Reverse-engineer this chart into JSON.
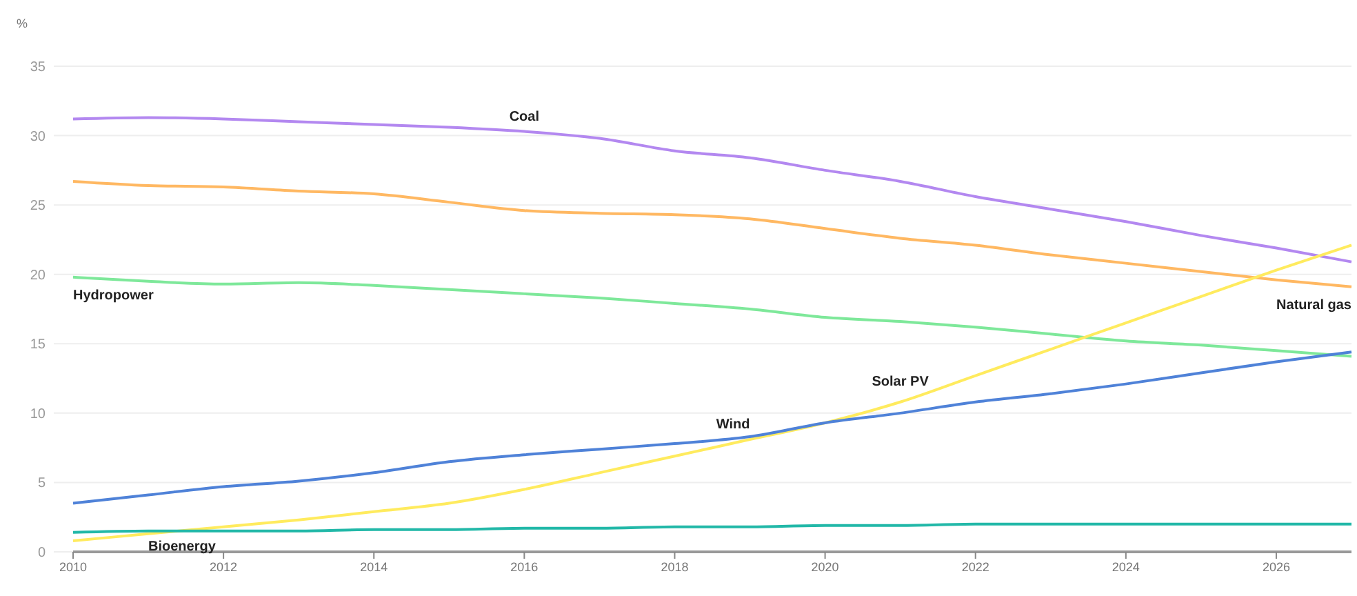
{
  "chart_data": {
    "type": "line",
    "ylabel": "%",
    "x": [
      2010,
      2011,
      2012,
      2013,
      2014,
      2015,
      2016,
      2017,
      2018,
      2019,
      2020,
      2021,
      2022,
      2023,
      2024,
      2025,
      2026,
      2027
    ],
    "xlim": [
      2010,
      2027
    ],
    "xticks": [
      2010,
      2012,
      2014,
      2016,
      2018,
      2020,
      2022,
      2024,
      2026
    ],
    "ylim": [
      0,
      35
    ],
    "yticks": [
      0,
      5,
      10,
      15,
      20,
      25,
      30,
      35
    ],
    "grid": "y",
    "legend": false,
    "marker": "none",
    "line_style": "solid",
    "series": [
      {
        "name": "Coal",
        "color": "#b388f0",
        "values": [
          31.2,
          31.3,
          31.2,
          31.0,
          30.8,
          30.6,
          30.3,
          29.8,
          28.9,
          28.4,
          27.5,
          26.7,
          25.6,
          24.7,
          23.8,
          22.8,
          21.9,
          20.9
        ]
      },
      {
        "name": "Natural gas",
        "color": "#ffb862",
        "values": [
          26.7,
          26.4,
          26.3,
          26.0,
          25.8,
          25.2,
          24.6,
          24.4,
          24.3,
          24.0,
          23.3,
          22.6,
          22.1,
          21.4,
          20.8,
          20.2,
          19.6,
          19.1
        ]
      },
      {
        "name": "Hydropower",
        "color": "#7ee89a",
        "values": [
          19.8,
          19.5,
          19.3,
          19.4,
          19.2,
          18.9,
          18.6,
          18.3,
          17.9,
          17.5,
          16.9,
          16.6,
          16.2,
          15.7,
          15.2,
          14.9,
          14.5,
          14.1
        ]
      },
      {
        "name": "Solar PV",
        "color": "#ffeb5e",
        "values": [
          0.8,
          1.3,
          1.8,
          2.3,
          2.9,
          3.5,
          4.5,
          5.7,
          6.9,
          8.1,
          9.3,
          10.8,
          12.7,
          14.6,
          16.5,
          18.4,
          20.3,
          22.1
        ]
      },
      {
        "name": "Wind",
        "color": "#4f82d8",
        "values": [
          3.5,
          4.1,
          4.7,
          5.1,
          5.7,
          6.5,
          7.0,
          7.4,
          7.8,
          8.3,
          9.3,
          10.0,
          10.8,
          11.4,
          12.1,
          12.9,
          13.7,
          14.4
        ]
      },
      {
        "name": "Bioenergy",
        "color": "#22b8a8",
        "values": [
          1.4,
          1.5,
          1.5,
          1.5,
          1.6,
          1.6,
          1.7,
          1.7,
          1.8,
          1.8,
          1.9,
          1.9,
          2.0,
          2.0,
          2.0,
          2.0,
          2.0,
          2.0
        ]
      }
    ]
  }
}
